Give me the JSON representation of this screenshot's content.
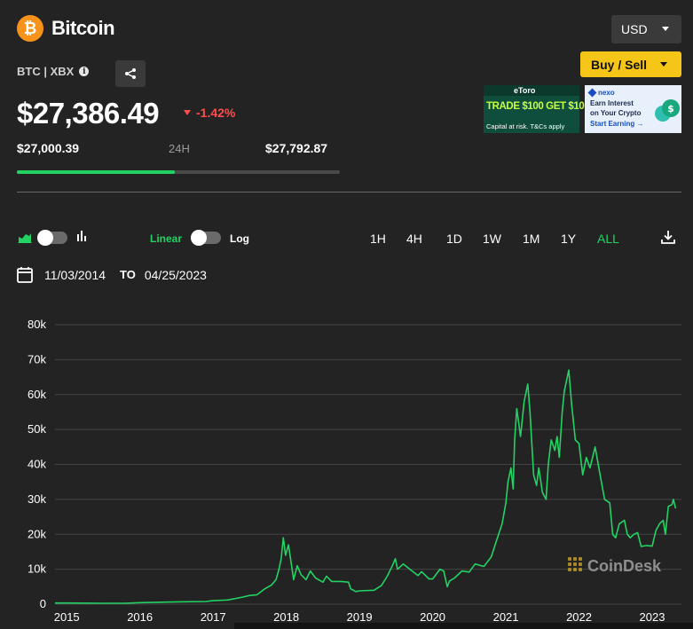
{
  "header": {
    "coin_name": "Bitcoin",
    "currency": "USD",
    "ticker": "BTC | XBX",
    "buy_sell_label": "Buy / Sell"
  },
  "price": {
    "current": "$27,386.49",
    "change": "-1.42%",
    "low": "$27,000.39",
    "range_label": "24H",
    "high": "$27,792.87",
    "range_position": 0.49
  },
  "ads": [
    {
      "brand": "eToro",
      "headline": "TRADE $100 GET $10",
      "disclaimer": "Capital at risk. T&Cs apply"
    },
    {
      "brand": "nexo",
      "line1": "Earn Interest",
      "line2": "on Your Crypto",
      "cta": "Start Earning →"
    }
  ],
  "controls": {
    "scale_linear": "Linear",
    "scale_log": "Log",
    "timeframes": [
      "1H",
      "4H",
      "1D",
      "1W",
      "1M",
      "1Y",
      "ALL"
    ],
    "active_timeframe": "ALL",
    "date_from": "11/03/2014",
    "date_to_label": "TO",
    "date_to": "04/25/2023"
  },
  "colors": {
    "accent_green": "#22d364",
    "negative_red": "#ff4d4d",
    "buy_yellow": "#f5c518",
    "bitcoin_orange": "#f7931a",
    "background": "#232323"
  },
  "icons": [
    "bitcoin-icon",
    "info-icon",
    "share-icon",
    "area-chart-icon",
    "bar-chart-icon",
    "calendar-icon",
    "download-icon"
  ],
  "chart_data": {
    "type": "line",
    "watermark": "CoinDesk",
    "ylim": [
      0,
      80000
    ],
    "y_ticks": [
      0,
      10000,
      20000,
      30000,
      40000,
      50000,
      60000,
      70000,
      80000
    ],
    "y_tick_labels": [
      "0",
      "10k",
      "20k",
      "30k",
      "40k",
      "50k",
      "60k",
      "70k",
      "80k"
    ],
    "x_tick_labels": [
      "2015",
      "2016",
      "2017",
      "2018",
      "2019",
      "2020",
      "2021",
      "2022",
      "2023"
    ],
    "grid": true,
    "series": [
      {
        "color": "#22d364",
        "points": [
          [
            2014.84,
            340
          ],
          [
            2015.0,
            320
          ],
          [
            2015.5,
            260
          ],
          [
            2015.8,
            250
          ],
          [
            2016.0,
            430
          ],
          [
            2016.5,
            650
          ],
          [
            2016.9,
            750
          ],
          [
            2017.0,
            1000
          ],
          [
            2017.2,
            1200
          ],
          [
            2017.4,
            2000
          ],
          [
            2017.5,
            2500
          ],
          [
            2017.6,
            2700
          ],
          [
            2017.7,
            4300
          ],
          [
            2017.8,
            5500
          ],
          [
            2017.86,
            7000
          ],
          [
            2017.9,
            10000
          ],
          [
            2017.93,
            13000
          ],
          [
            2017.96,
            19000
          ],
          [
            2017.99,
            14000
          ],
          [
            2018.03,
            17000
          ],
          [
            2018.08,
            10000
          ],
          [
            2018.1,
            7000
          ],
          [
            2018.15,
            11000
          ],
          [
            2018.2,
            8500
          ],
          [
            2018.27,
            7000
          ],
          [
            2018.33,
            9500
          ],
          [
            2018.4,
            7500
          ],
          [
            2018.5,
            6300
          ],
          [
            2018.55,
            8000
          ],
          [
            2018.62,
            6500
          ],
          [
            2018.75,
            6500
          ],
          [
            2018.85,
            6300
          ],
          [
            2018.88,
            4400
          ],
          [
            2018.95,
            3600
          ],
          [
            2019.0,
            3800
          ],
          [
            2019.2,
            4000
          ],
          [
            2019.3,
            5300
          ],
          [
            2019.38,
            8000
          ],
          [
            2019.45,
            11000
          ],
          [
            2019.49,
            13000
          ],
          [
            2019.52,
            10000
          ],
          [
            2019.6,
            11500
          ],
          [
            2019.7,
            9800
          ],
          [
            2019.8,
            8200
          ],
          [
            2019.85,
            9300
          ],
          [
            2019.95,
            7200
          ],
          [
            2020.0,
            7200
          ],
          [
            2020.1,
            10000
          ],
          [
            2020.15,
            9500
          ],
          [
            2020.2,
            5000
          ],
          [
            2020.23,
            6600
          ],
          [
            2020.3,
            7500
          ],
          [
            2020.4,
            9500
          ],
          [
            2020.5,
            9200
          ],
          [
            2020.58,
            11500
          ],
          [
            2020.7,
            10800
          ],
          [
            2020.8,
            13500
          ],
          [
            2020.87,
            18000
          ],
          [
            2020.95,
            23000
          ],
          [
            2021.0,
            29000
          ],
          [
            2021.03,
            35000
          ],
          [
            2021.07,
            39000
          ],
          [
            2021.1,
            33000
          ],
          [
            2021.12,
            47000
          ],
          [
            2021.15,
            56000
          ],
          [
            2021.2,
            48000
          ],
          [
            2021.25,
            58000
          ],
          [
            2021.3,
            63000
          ],
          [
            2021.33,
            55000
          ],
          [
            2021.38,
            37000
          ],
          [
            2021.42,
            34000
          ],
          [
            2021.45,
            39000
          ],
          [
            2021.5,
            32000
          ],
          [
            2021.55,
            30000
          ],
          [
            2021.58,
            40000
          ],
          [
            2021.62,
            47000
          ],
          [
            2021.67,
            44000
          ],
          [
            2021.7,
            48000
          ],
          [
            2021.73,
            42000
          ],
          [
            2021.77,
            55000
          ],
          [
            2021.8,
            61000
          ],
          [
            2021.86,
            67000
          ],
          [
            2021.9,
            57000
          ],
          [
            2021.95,
            47000
          ],
          [
            2022.0,
            46000
          ],
          [
            2022.05,
            37000
          ],
          [
            2022.1,
            42000
          ],
          [
            2022.15,
            39000
          ],
          [
            2022.22,
            45000
          ],
          [
            2022.28,
            38000
          ],
          [
            2022.35,
            30000
          ],
          [
            2022.42,
            29000
          ],
          [
            2022.46,
            20000
          ],
          [
            2022.5,
            19000
          ],
          [
            2022.55,
            23000
          ],
          [
            2022.62,
            24000
          ],
          [
            2022.66,
            20000
          ],
          [
            2022.7,
            19000
          ],
          [
            2022.75,
            20000
          ],
          [
            2022.8,
            20500
          ],
          [
            2022.85,
            16500
          ],
          [
            2022.92,
            16800
          ],
          [
            2023.0,
            16600
          ],
          [
            2023.05,
            21000
          ],
          [
            2023.1,
            23000
          ],
          [
            2023.15,
            24000
          ],
          [
            2023.18,
            20000
          ],
          [
            2023.22,
            28000
          ],
          [
            2023.27,
            28500
          ],
          [
            2023.29,
            30000
          ],
          [
            2023.32,
            27400
          ]
        ]
      }
    ]
  }
}
